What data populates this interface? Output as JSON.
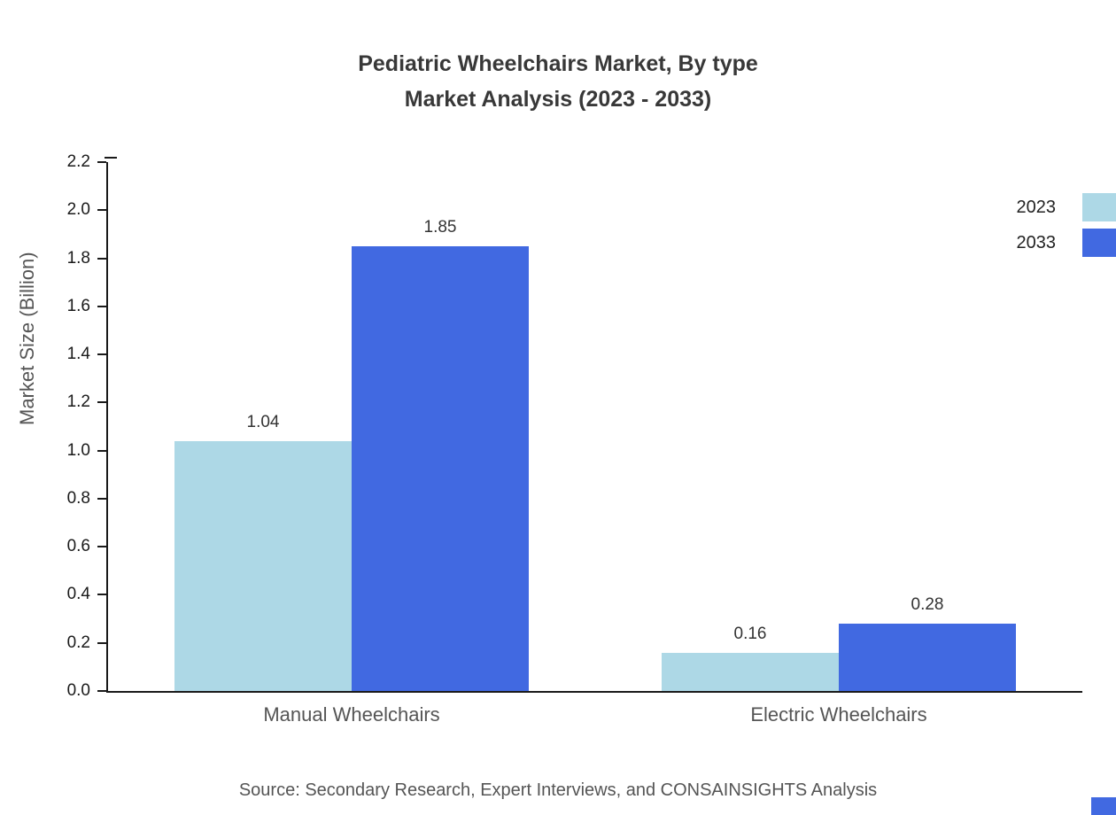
{
  "chart_data": {
    "type": "bar",
    "title": "Pediatric Wheelchairs Market, By type",
    "subtitle": "Market Analysis (2023 - 2033)",
    "ylabel": "Market Size (Billion)",
    "xlabel": "",
    "categories": [
      "Manual Wheelchairs",
      "Electric Wheelchairs"
    ],
    "series": [
      {
        "name": "2023",
        "color": "#add8e6",
        "values": [
          1.04,
          0.16
        ]
      },
      {
        "name": "2033",
        "color": "#4169e1",
        "values": [
          1.85,
          0.28
        ]
      }
    ],
    "value_labels": [
      [
        "1.04",
        "0.16"
      ],
      [
        "1.85",
        "0.28"
      ]
    ],
    "ylim": [
      0.0,
      2.2
    ],
    "yticks": [
      "0.0",
      "0.2",
      "0.4",
      "0.6",
      "0.8",
      "1.0",
      "1.2",
      "1.4",
      "1.6",
      "1.8",
      "2.0",
      "2.2"
    ],
    "grid": false,
    "legend_position": "top-right"
  },
  "footer": {
    "source": "Source: Secondary Research, Expert Interviews, and CONSAINSIGHTS Analysis"
  },
  "colors": {
    "series_2023": "#add8e6",
    "series_2033": "#4169e1",
    "axis": "#1a1a1a",
    "title_text": "#383838",
    "muted_text": "#555555",
    "accent": "#4169e1"
  }
}
